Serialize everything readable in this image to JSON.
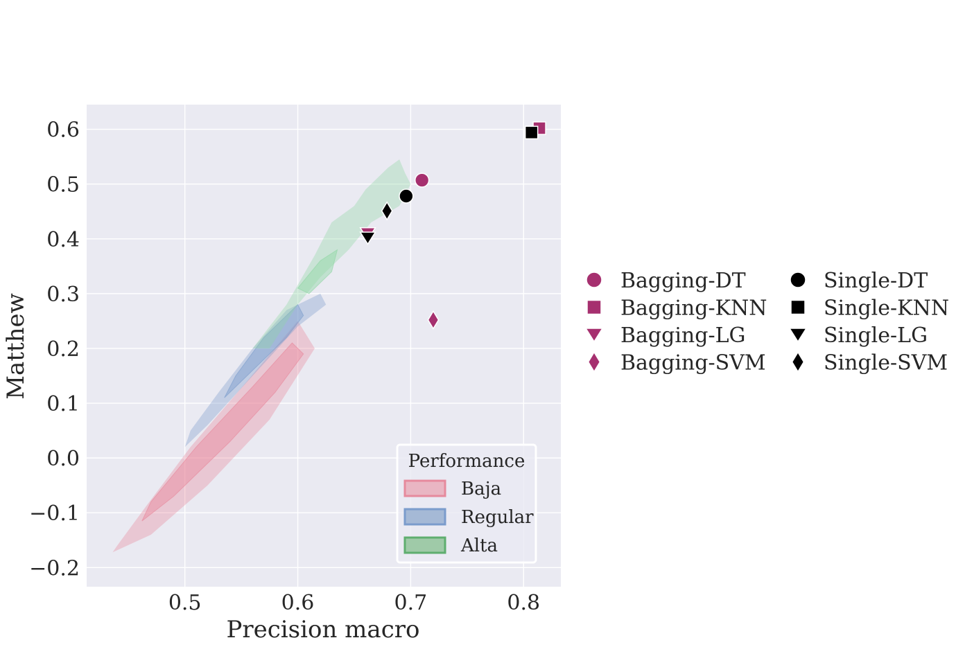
{
  "chart_data": {
    "type": "scatter",
    "xlabel": "Precision macro",
    "ylabel": "Matthew",
    "xlim": [
      0.413,
      0.833
    ],
    "ylim": [
      -0.235,
      0.645
    ],
    "xticks": [
      0.5,
      0.6,
      0.7,
      0.8
    ],
    "yticks": [
      -0.2,
      -0.1,
      0.0,
      0.1,
      0.2,
      0.3,
      0.4,
      0.5,
      0.6
    ],
    "ytick_labels": [
      "−0.2",
      "−0.1",
      "0.0",
      "0.1",
      "0.2",
      "0.3",
      "0.4",
      "0.5",
      "0.6"
    ],
    "xtick_labels": [
      "0.5",
      "0.6",
      "0.7",
      "0.8"
    ],
    "grid": true,
    "background": "#eaeaf2",
    "series": [
      {
        "name": "Bagging-DT",
        "marker": "circle",
        "color": "#a6306f",
        "points": [
          [
            0.71,
            0.507
          ]
        ]
      },
      {
        "name": "Bagging-KNN",
        "marker": "square",
        "color": "#a6306f",
        "points": [
          [
            0.814,
            0.602
          ]
        ]
      },
      {
        "name": "Bagging-LG",
        "marker": "triangle-down",
        "color": "#a6306f",
        "points": [
          [
            0.662,
            0.41
          ]
        ]
      },
      {
        "name": "Bagging-SVM",
        "marker": "diamond",
        "color": "#a6306f",
        "points": [
          [
            0.72,
            0.252
          ]
        ]
      },
      {
        "name": "Single-DT",
        "marker": "circle",
        "color": "#000000",
        "points": [
          [
            0.696,
            0.478
          ]
        ]
      },
      {
        "name": "Single-KNN",
        "marker": "square",
        "color": "#000000",
        "points": [
          [
            0.807,
            0.594
          ]
        ]
      },
      {
        "name": "Single-LG",
        "marker": "triangle-down",
        "color": "#000000",
        "points": [
          [
            0.662,
            0.402
          ]
        ]
      },
      {
        "name": "Single-SVM",
        "marker": "diamond",
        "color": "#000000",
        "points": [
          [
            0.679,
            0.451
          ]
        ]
      }
    ],
    "density_regions": [
      {
        "name": "Baja",
        "color": "#e8879b",
        "outer": [
          [
            0.436,
            -0.172
          ],
          [
            0.47,
            -0.14
          ],
          [
            0.52,
            -0.05
          ],
          [
            0.575,
            0.07
          ],
          [
            0.615,
            0.2
          ],
          [
            0.6,
            0.25
          ],
          [
            0.555,
            0.14
          ],
          [
            0.505,
            0.02
          ],
          [
            0.465,
            -0.09
          ],
          [
            0.44,
            -0.16
          ]
        ],
        "inner": [
          [
            0.462,
            -0.115
          ],
          [
            0.49,
            -0.07
          ],
          [
            0.54,
            0.03
          ],
          [
            0.58,
            0.12
          ],
          [
            0.605,
            0.19
          ],
          [
            0.595,
            0.21
          ],
          [
            0.56,
            0.13
          ],
          [
            0.51,
            0.02
          ],
          [
            0.47,
            -0.08
          ]
        ]
      },
      {
        "name": "Regular",
        "color": "#7b9ccc",
        "outer": [
          [
            0.5,
            0.02
          ],
          [
            0.52,
            0.06
          ],
          [
            0.56,
            0.15
          ],
          [
            0.6,
            0.24
          ],
          [
            0.625,
            0.28
          ],
          [
            0.62,
            0.3
          ],
          [
            0.59,
            0.27
          ],
          [
            0.56,
            0.2
          ],
          [
            0.53,
            0.12
          ],
          [
            0.505,
            0.05
          ]
        ],
        "inner": [
          [
            0.535,
            0.11
          ],
          [
            0.56,
            0.16
          ],
          [
            0.59,
            0.22
          ],
          [
            0.605,
            0.26
          ],
          [
            0.6,
            0.28
          ],
          [
            0.57,
            0.22
          ],
          [
            0.545,
            0.15
          ]
        ]
      },
      {
        "name": "Alta",
        "color": "#8fd6a3",
        "outer": [
          [
            0.56,
            0.2
          ],
          [
            0.59,
            0.28
          ],
          [
            0.615,
            0.37
          ],
          [
            0.63,
            0.43
          ],
          [
            0.65,
            0.46
          ],
          [
            0.66,
            0.49
          ],
          [
            0.68,
            0.53
          ],
          [
            0.69,
            0.545
          ],
          [
            0.695,
            0.52
          ],
          [
            0.7,
            0.5
          ],
          [
            0.69,
            0.46
          ],
          [
            0.665,
            0.43
          ],
          [
            0.645,
            0.38
          ],
          [
            0.62,
            0.33
          ],
          [
            0.6,
            0.28
          ],
          [
            0.575,
            0.2
          ]
        ],
        "inner": [
          [
            0.6,
            0.31
          ],
          [
            0.62,
            0.36
          ],
          [
            0.635,
            0.38
          ],
          [
            0.63,
            0.34
          ],
          [
            0.61,
            0.3
          ]
        ]
      }
    ],
    "legend_regions": {
      "title": "Performance",
      "entries": [
        {
          "name": "Baja",
          "fill": "#e9b6c3",
          "stroke": "#e68a9d"
        },
        {
          "name": "Regular",
          "fill": "#a5b9d6",
          "stroke": "#7b9ccc"
        },
        {
          "name": "Alta",
          "fill": "#9fcaa8",
          "stroke": "#5fae6f"
        }
      ],
      "placement": "lower-right"
    },
    "legend_markers": {
      "placement": "right, outside plot",
      "entries": [
        "Bagging-DT",
        "Bagging-KNN",
        "Bagging-LG",
        "Bagging-SVM",
        "Single-DT",
        "Single-KNN",
        "Single-LG",
        "Single-SVM"
      ]
    }
  }
}
